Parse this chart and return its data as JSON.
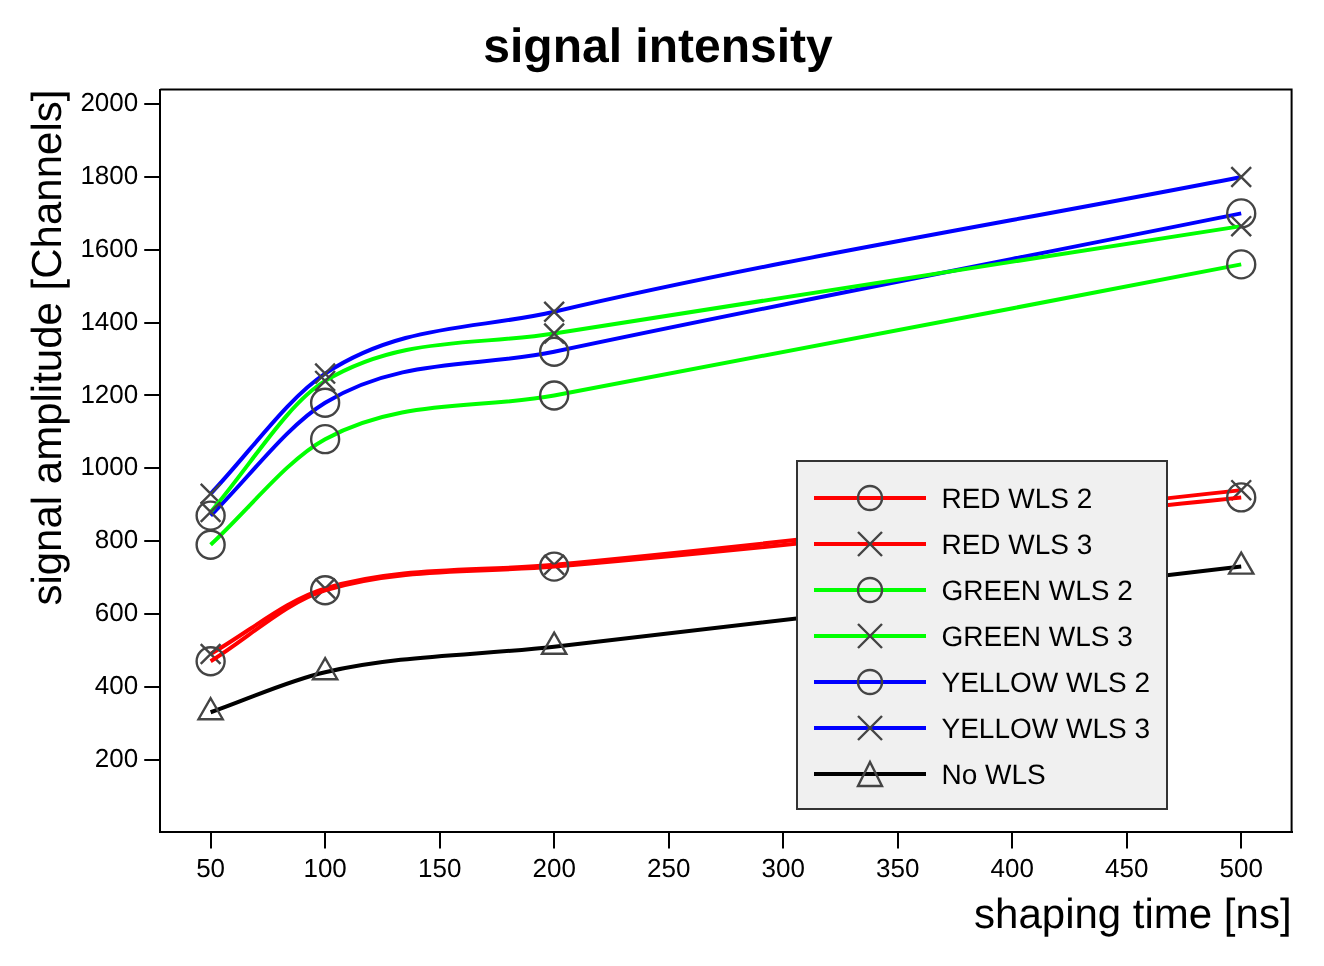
{
  "chart_data": {
    "type": "line",
    "title": "signal intensity",
    "xlabel": "shaping time [ns]",
    "ylabel": "signal amplitude [Channels]",
    "x": [
      50,
      100,
      200,
      500
    ],
    "series": [
      {
        "name": "RED WLS 2",
        "color": "#ff0000",
        "marker": "circle",
        "values": [
          470,
          665,
          730,
          920
        ]
      },
      {
        "name": "RED WLS 3",
        "color": "#ff0000",
        "marker": "cross",
        "values": [
          490,
          670,
          735,
          940
        ]
      },
      {
        "name": "GREEN WLS 2",
        "color": "#00ff00",
        "marker": "circle",
        "values": [
          790,
          1080,
          1200,
          1560
        ]
      },
      {
        "name": "GREEN WLS 3",
        "color": "#00ff00",
        "marker": "cross",
        "values": [
          880,
          1240,
          1370,
          1665
        ]
      },
      {
        "name": "YELLOW WLS 2",
        "color": "#0000ff",
        "marker": "circle",
        "values": [
          870,
          1180,
          1320,
          1700
        ]
      },
      {
        "name": "YELLOW WLS 3",
        "color": "#0000ff",
        "marker": "cross",
        "values": [
          930,
          1260,
          1430,
          1800
        ]
      },
      {
        "name": "No WLS",
        "color": "#000000",
        "marker": "triangle",
        "values": [
          330,
          440,
          510,
          730
        ]
      }
    ],
    "xlim": [
      28,
      522
    ],
    "xticks": [
      50,
      100,
      150,
      200,
      250,
      300,
      350,
      400,
      450,
      500
    ],
    "ylim": [
      0,
      2040
    ],
    "yticks": [
      200,
      400,
      600,
      800,
      1000,
      1200,
      1400,
      1600,
      1800,
      2000
    ],
    "grid": false,
    "legend": "bottom right"
  }
}
